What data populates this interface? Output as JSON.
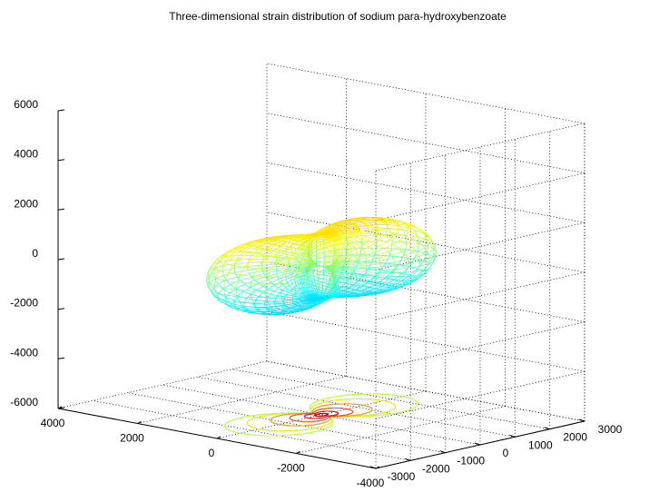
{
  "chart_data": {
    "type": "surface-3d",
    "title": "Three-dimensional strain distribution of sodium para-hydroxybenzoate",
    "xlabel": "",
    "ylabel": "",
    "zlabel": "",
    "x_ticks": [
      4000,
      2000,
      0,
      -2000,
      -4000
    ],
    "y_ticks": [
      -3000,
      -2000,
      -1000,
      0,
      1000,
      2000,
      3000
    ],
    "z_ticks": [
      6000,
      4000,
      2000,
      0,
      -2000,
      -4000,
      -6000
    ],
    "x_tick_labels": [
      "4000",
      "2000",
      "0",
      "-2000",
      "-4000"
    ],
    "y_tick_labels": [
      "-3000",
      "-2000",
      "-1000",
      "0",
      "1000",
      "2000",
      "3000"
    ],
    "z_tick_labels": [
      "6000",
      "4000",
      "2000",
      "0",
      "-2000",
      "-4000",
      "-6000"
    ],
    "xlim": [
      -4000,
      4000
    ],
    "ylim": [
      -3000,
      3000
    ],
    "zlim": [
      -6000,
      6000
    ],
    "grid": true,
    "colormap": "jet",
    "surface": "wireframe mesh, peanut-shaped lobes: positive strain above z=0 (yellow to red), negative strain below z=0 (cyan to blue)",
    "contours_on_floor": true,
    "colors": [
      "#00008f",
      "#0000ff",
      "#00ffff",
      "#80ff80",
      "#ffff00",
      "#ff8000",
      "#ff0000",
      "#800000"
    ]
  }
}
